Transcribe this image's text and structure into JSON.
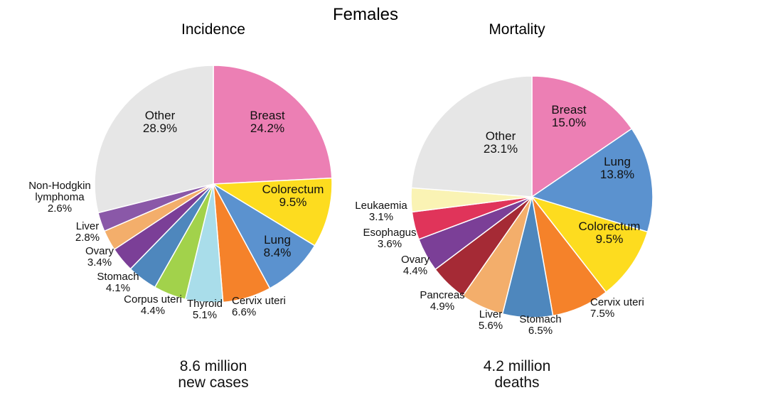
{
  "figure_title": "Females",
  "chart_data": [
    {
      "type": "pie",
      "title": "Incidence",
      "total_line1": "8.6 million",
      "total_line2": "new cases",
      "start": "12 o'clock, clockwise",
      "slices": [
        {
          "name": "Breast",
          "value": 24.2,
          "label": "24.2%",
          "color": "#EC7FB4"
        },
        {
          "name": "Colorectum",
          "value": 9.5,
          "label": "9.5%",
          "color": "#FDDC1F"
        },
        {
          "name": "Lung",
          "value": 8.4,
          "label": "8.4%",
          "color": "#5B92CF"
        },
        {
          "name": "Cervix uteri",
          "value": 6.6,
          "label": "6.6%",
          "color": "#F5822A"
        },
        {
          "name": "Thyroid",
          "value": 5.1,
          "label": "5.1%",
          "color": "#A9DDEA"
        },
        {
          "name": "Corpus uteri",
          "value": 4.4,
          "label": "4.4%",
          "color": "#A2D24B"
        },
        {
          "name": "Stomach",
          "value": 4.1,
          "label": "4.1%",
          "color": "#4E87BD"
        },
        {
          "name": "Ovary",
          "value": 3.4,
          "label": "3.4%",
          "color": "#7B3F97"
        },
        {
          "name": "Liver",
          "value": 2.8,
          "label": "2.8%",
          "color": "#F3AE6B"
        },
        {
          "name": "Non-Hodgkin lymphoma",
          "value": 2.6,
          "label": "2.6%",
          "color": "#8A58A8"
        },
        {
          "name": "Other",
          "value": 28.9,
          "label": "28.9%",
          "color": "#E6E6E6"
        }
      ]
    },
    {
      "type": "pie",
      "title": "Mortality",
      "total_line1": "4.2 million",
      "total_line2": "deaths",
      "start": "12 o'clock, clockwise",
      "slices": [
        {
          "name": "Breast",
          "value": 15.0,
          "label": "15.0%",
          "color": "#EC7FB4"
        },
        {
          "name": "Lung",
          "value": 13.8,
          "label": "13.8%",
          "color": "#5B92CF"
        },
        {
          "name": "Colorectum",
          "value": 9.5,
          "label": "9.5%",
          "color": "#FDDC1F"
        },
        {
          "name": "Cervix uteri",
          "value": 7.5,
          "label": "7.5%",
          "color": "#F5822A"
        },
        {
          "name": "Stomach",
          "value": 6.5,
          "label": "6.5%",
          "color": "#4E87BD"
        },
        {
          "name": "Liver",
          "value": 5.6,
          "label": "5.6%",
          "color": "#F3AE6B"
        },
        {
          "name": "Pancreas",
          "value": 4.9,
          "label": "4.9%",
          "color": "#A52A35"
        },
        {
          "name": "Ovary",
          "value": 4.4,
          "label": "4.4%",
          "color": "#7B3F97"
        },
        {
          "name": "Esophagus",
          "value": 3.6,
          "label": "3.6%",
          "color": "#E0345A"
        },
        {
          "name": "Leukaemia",
          "value": 3.1,
          "label": "3.1%",
          "color": "#FAF3B4"
        },
        {
          "name": "Other",
          "value": 23.1,
          "label": "23.1%",
          "color": "#E6E6E6"
        }
      ]
    }
  ]
}
